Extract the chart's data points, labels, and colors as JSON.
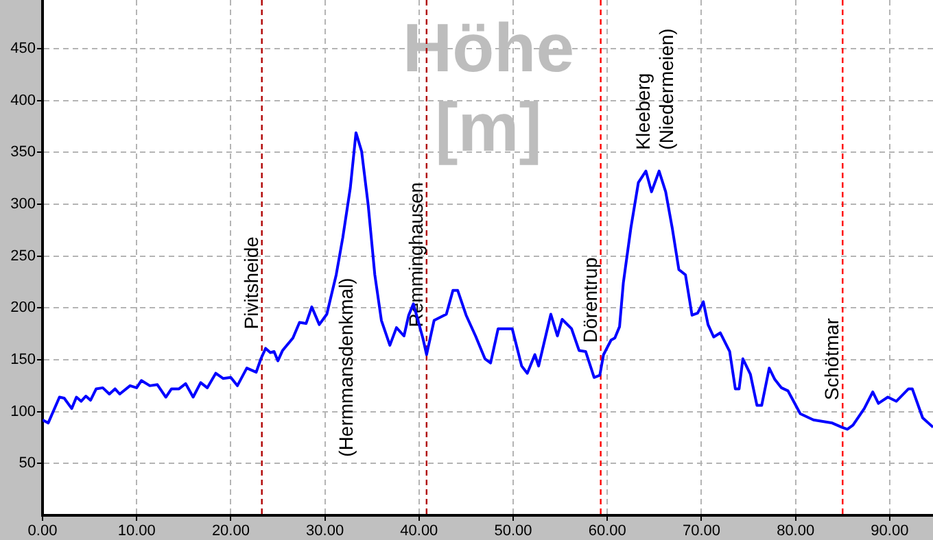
{
  "chart_data": {
    "type": "line",
    "ylabel": "Höhe [m]",
    "x": [
      0,
      0.6,
      1.8,
      2.3,
      3.1,
      3.6,
      4.1,
      4.6,
      5.1,
      5.7,
      6.4,
      7.1,
      7.7,
      8.2,
      9.3,
      10.0,
      10.5,
      11.4,
      12.2,
      13.1,
      13.7,
      14.5,
      15.2,
      16.0,
      16.8,
      17.5,
      18.4,
      19.2,
      20.0,
      20.7,
      21.7,
      22.7,
      23.2,
      23.7,
      24.2,
      24.6,
      25.0,
      25.5,
      26.6,
      27.3,
      28.0,
      28.6,
      29.4,
      30.2,
      31.2,
      31.9,
      32.7,
      33.3,
      33.9,
      34.6,
      35.3,
      36.0,
      36.9,
      37.6,
      38.4,
      38.9,
      39.4,
      40.4,
      40.8,
      41.6,
      42.9,
      43.6,
      44.1,
      45.0,
      46.0,
      47.0,
      47.6,
      48.4,
      49.9,
      50.9,
      51.5,
      52.3,
      52.7,
      54.0,
      54.7,
      55.2,
      56.2,
      57.0,
      57.7,
      58.6,
      59.2,
      59.6,
      60.4,
      60.8,
      61.3,
      61.7,
      62.5,
      63.3,
      64.1,
      64.7,
      65.5,
      66.2,
      66.9,
      67.6,
      68.3,
      69.0,
      69.6,
      70.2,
      70.7,
      71.3,
      72.0,
      73.0,
      73.6,
      74.0,
      74.4,
      75.2,
      75.9,
      76.4,
      77.2,
      77.8,
      78.5,
      79.2,
      80.5,
      81.9,
      83.9,
      84.9,
      85.5,
      86.1,
      87.3,
      88.2,
      88.8,
      89.8,
      90.7,
      92.0,
      92.4,
      93.5,
      94.6
    ],
    "series": [
      {
        "color": "#0000ff",
        "values": [
          92,
          89,
          114,
          113,
          103,
          114,
          110,
          115,
          111,
          122,
          123,
          117,
          122,
          117,
          125,
          123,
          130,
          125,
          126,
          114,
          122,
          122,
          127,
          114,
          128,
          123,
          137,
          132,
          133,
          125,
          142,
          138,
          151,
          161,
          157,
          158,
          149,
          159,
          171,
          186,
          185,
          201,
          184,
          194,
          232,
          268,
          316,
          369,
          351,
          299,
          232,
          188,
          164,
          181,
          173,
          193,
          204,
          171,
          155,
          188,
          194,
          217,
          217,
          193,
          173,
          151,
          147,
          180,
          180,
          144,
          137,
          155,
          144,
          194,
          173,
          189,
          180,
          159,
          158,
          133,
          135,
          155,
          169,
          171,
          182,
          224,
          277,
          321,
          332,
          312,
          332,
          312,
          277,
          237,
          232,
          193,
          195,
          206,
          184,
          172,
          176,
          158,
          122,
          122,
          151,
          136,
          106,
          106,
          142,
          131,
          123,
          120,
          98,
          92,
          89,
          85,
          83,
          87,
          103,
          119,
          108,
          114,
          110,
          122,
          122,
          94,
          85
        ]
      }
    ],
    "xlim": [
      0,
      94.6
    ],
    "ylim": [
      0,
      497
    ],
    "xticks": [
      {
        "value": 0,
        "label": "0.00"
      },
      {
        "value": 10,
        "label": "10.00"
      },
      {
        "value": 20,
        "label": "20.00"
      },
      {
        "value": 30,
        "label": "30.00"
      },
      {
        "value": 40,
        "label": "40.00"
      },
      {
        "value": 50,
        "label": "50.00"
      },
      {
        "value": 60,
        "label": "60.00"
      },
      {
        "value": 70,
        "label": "70.00"
      },
      {
        "value": 80,
        "label": "80.00"
      },
      {
        "value": 90,
        "label": "90.00"
      }
    ],
    "yticks": [
      50,
      100,
      150,
      200,
      250,
      300,
      350,
      400,
      450
    ],
    "grid": true,
    "legend": false,
    "marker": "none",
    "line_style": "solid",
    "ref_lines": [
      {
        "axis": "x",
        "value": 23.3,
        "label": "Pivitsheide",
        "color": "#b00000",
        "line_style": "dashed"
      },
      {
        "axis": "x",
        "value": 40.8,
        "label": "Remminghausen",
        "color": "#b00000",
        "line_style": "dashed"
      },
      {
        "axis": "x",
        "value": 59.3,
        "label": "Dörentrup",
        "color": "#ff0000",
        "line_style": "dashed"
      },
      {
        "axis": "x",
        "value": 85.0,
        "label": "Schötmar",
        "color": "#ff0000",
        "line_style": "dashed"
      }
    ],
    "annotations": [
      "(Hermmansdenkmal)",
      "Kleeberg (Niedermeien)"
    ]
  }
}
